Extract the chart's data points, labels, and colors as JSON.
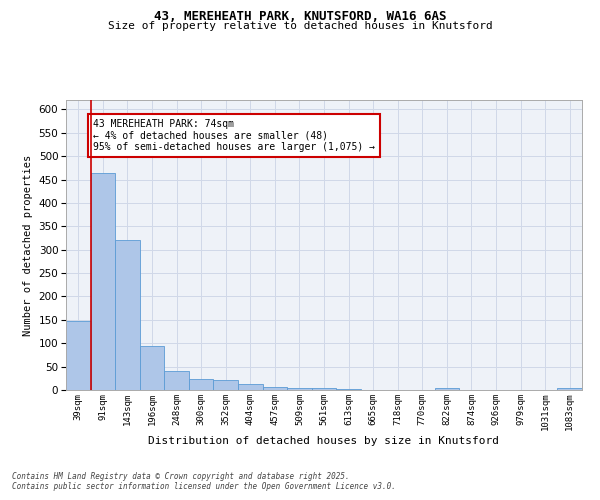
{
  "title1": "43, MEREHEATH PARK, KNUTSFORD, WA16 6AS",
  "title2": "Size of property relative to detached houses in Knutsford",
  "xlabel": "Distribution of detached houses by size in Knutsford",
  "ylabel": "Number of detached properties",
  "categories": [
    "39sqm",
    "91sqm",
    "143sqm",
    "196sqm",
    "248sqm",
    "300sqm",
    "352sqm",
    "404sqm",
    "457sqm",
    "509sqm",
    "561sqm",
    "613sqm",
    "665sqm",
    "718sqm",
    "770sqm",
    "822sqm",
    "874sqm",
    "926sqm",
    "979sqm",
    "1031sqm",
    "1083sqm"
  ],
  "values": [
    148,
    465,
    320,
    94,
    40,
    23,
    22,
    12,
    7,
    5,
    5,
    2,
    0,
    0,
    0,
    4,
    0,
    0,
    0,
    0,
    5
  ],
  "bar_color": "#aec6e8",
  "bar_edge_color": "#5b9bd5",
  "grid_color": "#d0d8e8",
  "background_color": "#eef2f8",
  "red_line_x": 0.5,
  "annotation_text": "43 MEREHEATH PARK: 74sqm\n← 4% of detached houses are smaller (48)\n95% of semi-detached houses are larger (1,075) →",
  "annotation_box_color": "#ffffff",
  "annotation_border_color": "#cc0000",
  "footer1": "Contains HM Land Registry data © Crown copyright and database right 2025.",
  "footer2": "Contains public sector information licensed under the Open Government Licence v3.0.",
  "ylim": [
    0,
    620
  ],
  "yticks": [
    0,
    50,
    100,
    150,
    200,
    250,
    300,
    350,
    400,
    450,
    500,
    550,
    600
  ]
}
